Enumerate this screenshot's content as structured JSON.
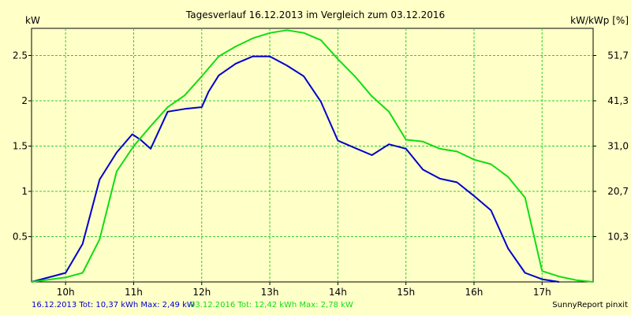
{
  "chart_data": {
    "type": "line",
    "title": "Tagesverlauf 16.12.2013 im Vergleich zum 03.12.2016",
    "left_unit": "kW",
    "right_unit": "kW/kWp [%]",
    "x_ticks": [
      {
        "x": 10,
        "label": "10h"
      },
      {
        "x": 11,
        "label": "11h"
      },
      {
        "x": 12,
        "label": "12h"
      },
      {
        "x": 13,
        "label": "13h"
      },
      {
        "x": 14,
        "label": "14h"
      },
      {
        "x": 15,
        "label": "15h"
      },
      {
        "x": 16,
        "label": "16h"
      },
      {
        "x": 17,
        "label": "17h"
      }
    ],
    "y_ticks_left": [
      {
        "v": 0.5,
        "label": "0.5"
      },
      {
        "v": 1,
        "label": "1"
      },
      {
        "v": 1.5,
        "label": "1.5"
      },
      {
        "v": 2,
        "label": "2"
      },
      {
        "v": 2.5,
        "label": "2.5"
      }
    ],
    "y_ticks_right": [
      {
        "v": 0.5,
        "label": "10,3"
      },
      {
        "v": 1,
        "label": "20,7"
      },
      {
        "v": 1.5,
        "label": "31,0"
      },
      {
        "v": 2,
        "label": "41,3"
      },
      {
        "v": 2.5,
        "label": "51,7"
      }
    ],
    "xlim": [
      9.5,
      17.75
    ],
    "ylim": [
      0,
      2.8
    ],
    "grid": true,
    "series": [
      {
        "color": "#0000cc",
        "points": [
          [
            9.5,
            0.0
          ],
          [
            10.0,
            0.1
          ],
          [
            10.25,
            0.42
          ],
          [
            10.5,
            1.13
          ],
          [
            10.75,
            1.43
          ],
          [
            10.98,
            1.63
          ],
          [
            11.1,
            1.57
          ],
          [
            11.25,
            1.47
          ],
          [
            11.5,
            1.88
          ],
          [
            11.75,
            1.91
          ],
          [
            12.0,
            1.93
          ],
          [
            12.1,
            2.1
          ],
          [
            12.25,
            2.28
          ],
          [
            12.5,
            2.41
          ],
          [
            12.75,
            2.49
          ],
          [
            13.0,
            2.49
          ],
          [
            13.25,
            2.39
          ],
          [
            13.5,
            2.27
          ],
          [
            13.75,
            1.99
          ],
          [
            14.0,
            1.56
          ],
          [
            14.25,
            1.48
          ],
          [
            14.5,
            1.4
          ],
          [
            14.75,
            1.52
          ],
          [
            15.0,
            1.47
          ],
          [
            15.25,
            1.24
          ],
          [
            15.5,
            1.14
          ],
          [
            15.75,
            1.1
          ],
          [
            16.0,
            0.95
          ],
          [
            16.25,
            0.79
          ],
          [
            16.5,
            0.37
          ],
          [
            16.75,
            0.1
          ],
          [
            17.0,
            0.03
          ],
          [
            17.25,
            0.0
          ]
        ]
      },
      {
        "color": "#11dd11",
        "points": [
          [
            9.5,
            0.0
          ],
          [
            10.0,
            0.05
          ],
          [
            10.25,
            0.1
          ],
          [
            10.5,
            0.47
          ],
          [
            10.75,
            1.22
          ],
          [
            11.0,
            1.5
          ],
          [
            11.25,
            1.72
          ],
          [
            11.5,
            1.93
          ],
          [
            11.75,
            2.06
          ],
          [
            12.0,
            2.27
          ],
          [
            12.25,
            2.49
          ],
          [
            12.5,
            2.6
          ],
          [
            12.75,
            2.69
          ],
          [
            13.0,
            2.75
          ],
          [
            13.25,
            2.78
          ],
          [
            13.5,
            2.75
          ],
          [
            13.75,
            2.67
          ],
          [
            14.0,
            2.46
          ],
          [
            14.25,
            2.27
          ],
          [
            14.5,
            2.05
          ],
          [
            14.75,
            1.88
          ],
          [
            15.0,
            1.57
          ],
          [
            15.25,
            1.55
          ],
          [
            15.5,
            1.47
          ],
          [
            15.75,
            1.44
          ],
          [
            16.0,
            1.35
          ],
          [
            16.25,
            1.3
          ],
          [
            16.5,
            1.16
          ],
          [
            16.75,
            0.93
          ],
          [
            17.0,
            0.12
          ],
          [
            17.25,
            0.06
          ],
          [
            17.5,
            0.02
          ],
          [
            17.75,
            0.0
          ]
        ]
      }
    ]
  },
  "footer": {
    "series1_text": "16.12.2013 Tot: 10,37 kWh Max: 2,49 kW",
    "series2_text": "03.12.2016 Tot: 12,42 kWh Max: 2,78 kW",
    "credit": "SunnyReport pinxit"
  }
}
